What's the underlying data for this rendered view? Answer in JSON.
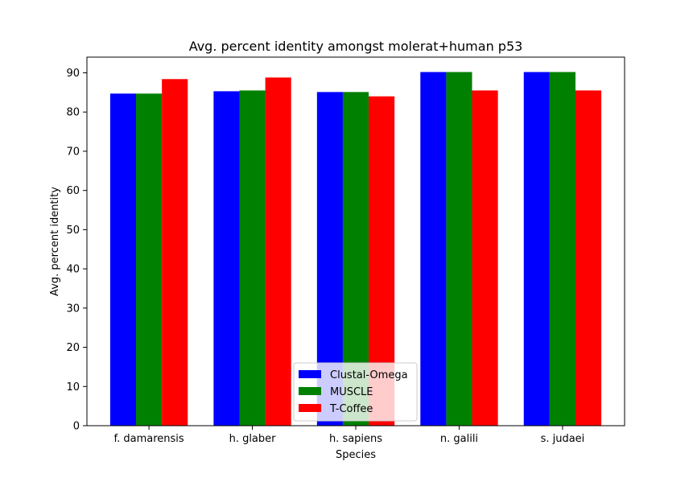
{
  "chart_data": {
    "type": "bar",
    "title": "Avg. percent identity amongst molerat+human p53",
    "xlabel": "Species",
    "ylabel": "Avg. percent identity",
    "categories": [
      "f. damarensis",
      "h. glaber",
      "h. sapiens",
      "n. galili",
      "s. judaei"
    ],
    "series": [
      {
        "name": "Clustal-Omega",
        "color": "#0000ff",
        "values": [
          84.7,
          85.3,
          85.1,
          90.2,
          90.2
        ]
      },
      {
        "name": "MUSCLE",
        "color": "#008000",
        "values": [
          84.7,
          85.5,
          85.1,
          90.2,
          90.2
        ]
      },
      {
        "name": "T-Coffee",
        "color": "#ff0000",
        "values": [
          88.4,
          88.8,
          84.0,
          85.5,
          85.5
        ]
      }
    ],
    "ylim": [
      0,
      94
    ],
    "yticks": [
      0,
      10,
      20,
      30,
      40,
      50,
      60,
      70,
      80,
      90
    ],
    "grid": false,
    "legend_position": "bottom-center"
  }
}
